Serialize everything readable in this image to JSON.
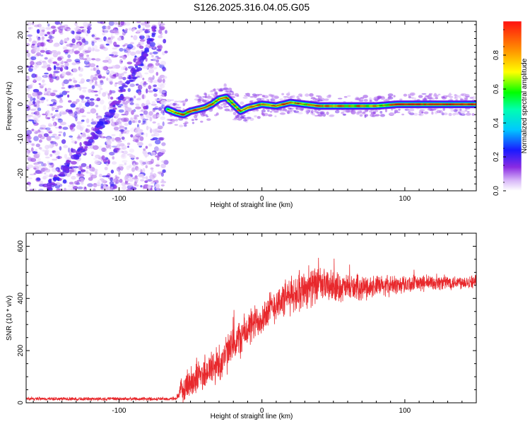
{
  "figure": {
    "title": "S126.2025.316.04.05.G05"
  },
  "chart_data": [
    {
      "type": "heatmap",
      "xlabel": "Height of straight line (km)",
      "ylabel": "Frequency (Hz)",
      "xlim": [
        -165,
        150
      ],
      "ylim": [
        -25,
        24
      ],
      "xticks": [
        -100,
        0,
        100
      ],
      "yticks": [
        -20,
        -10,
        0,
        10,
        20
      ],
      "colorbar": {
        "label": "Normalized spectral amplitude",
        "range": [
          0,
          1
        ],
        "ticks": [
          "0.0",
          "0.2",
          "0.4",
          "0.6",
          "0.8"
        ]
      },
      "noise_region_x": [
        -165,
        -67
      ],
      "ridge": {
        "x": [
          -66,
          -60,
          -55,
          -50,
          -45,
          -40,
          -35,
          -30,
          -25,
          -20,
          -15,
          -10,
          -5,
          0,
          10,
          20,
          30,
          40,
          60,
          80,
          95,
          110,
          150
        ],
        "freq": [
          -1.5,
          -2.5,
          -3.0,
          -2.0,
          -1.5,
          -1.0,
          0.0,
          1.5,
          2.0,
          0.0,
          -2.0,
          -1.0,
          -0.5,
          0.0,
          -0.5,
          0.5,
          0.0,
          -0.5,
          -0.5,
          -0.5,
          0.0,
          0.0,
          0.0
        ]
      },
      "diagonal_feature": {
        "x": [
          -150,
          -130,
          -110,
          -95,
          -85,
          -75
        ],
        "freq": [
          -24,
          -15,
          -5,
          5,
          12,
          22
        ]
      }
    },
    {
      "type": "line",
      "xlabel": "Height of straight line (km)",
      "ylabel": "SNR (10 * v/v)",
      "xlim": [
        -165,
        150
      ],
      "ylim": [
        0,
        650
      ],
      "xticks": [
        -100,
        0,
        100
      ],
      "yticks": [
        0,
        200,
        400,
        600
      ],
      "series_envelope": {
        "x": [
          -165,
          -60,
          -55,
          -45,
          -30,
          -20,
          -10,
          0,
          10,
          20,
          30,
          40,
          60,
          80,
          100,
          120,
          150
        ],
        "mean": [
          15,
          15,
          60,
          100,
          150,
          220,
          280,
          330,
          380,
          410,
          440,
          450,
          440,
          445,
          455,
          460,
          465
        ],
        "spread": [
          8,
          8,
          70,
          80,
          90,
          90,
          85,
          80,
          80,
          85,
          90,
          80,
          60,
          50,
          40,
          35,
          30
        ]
      }
    }
  ]
}
